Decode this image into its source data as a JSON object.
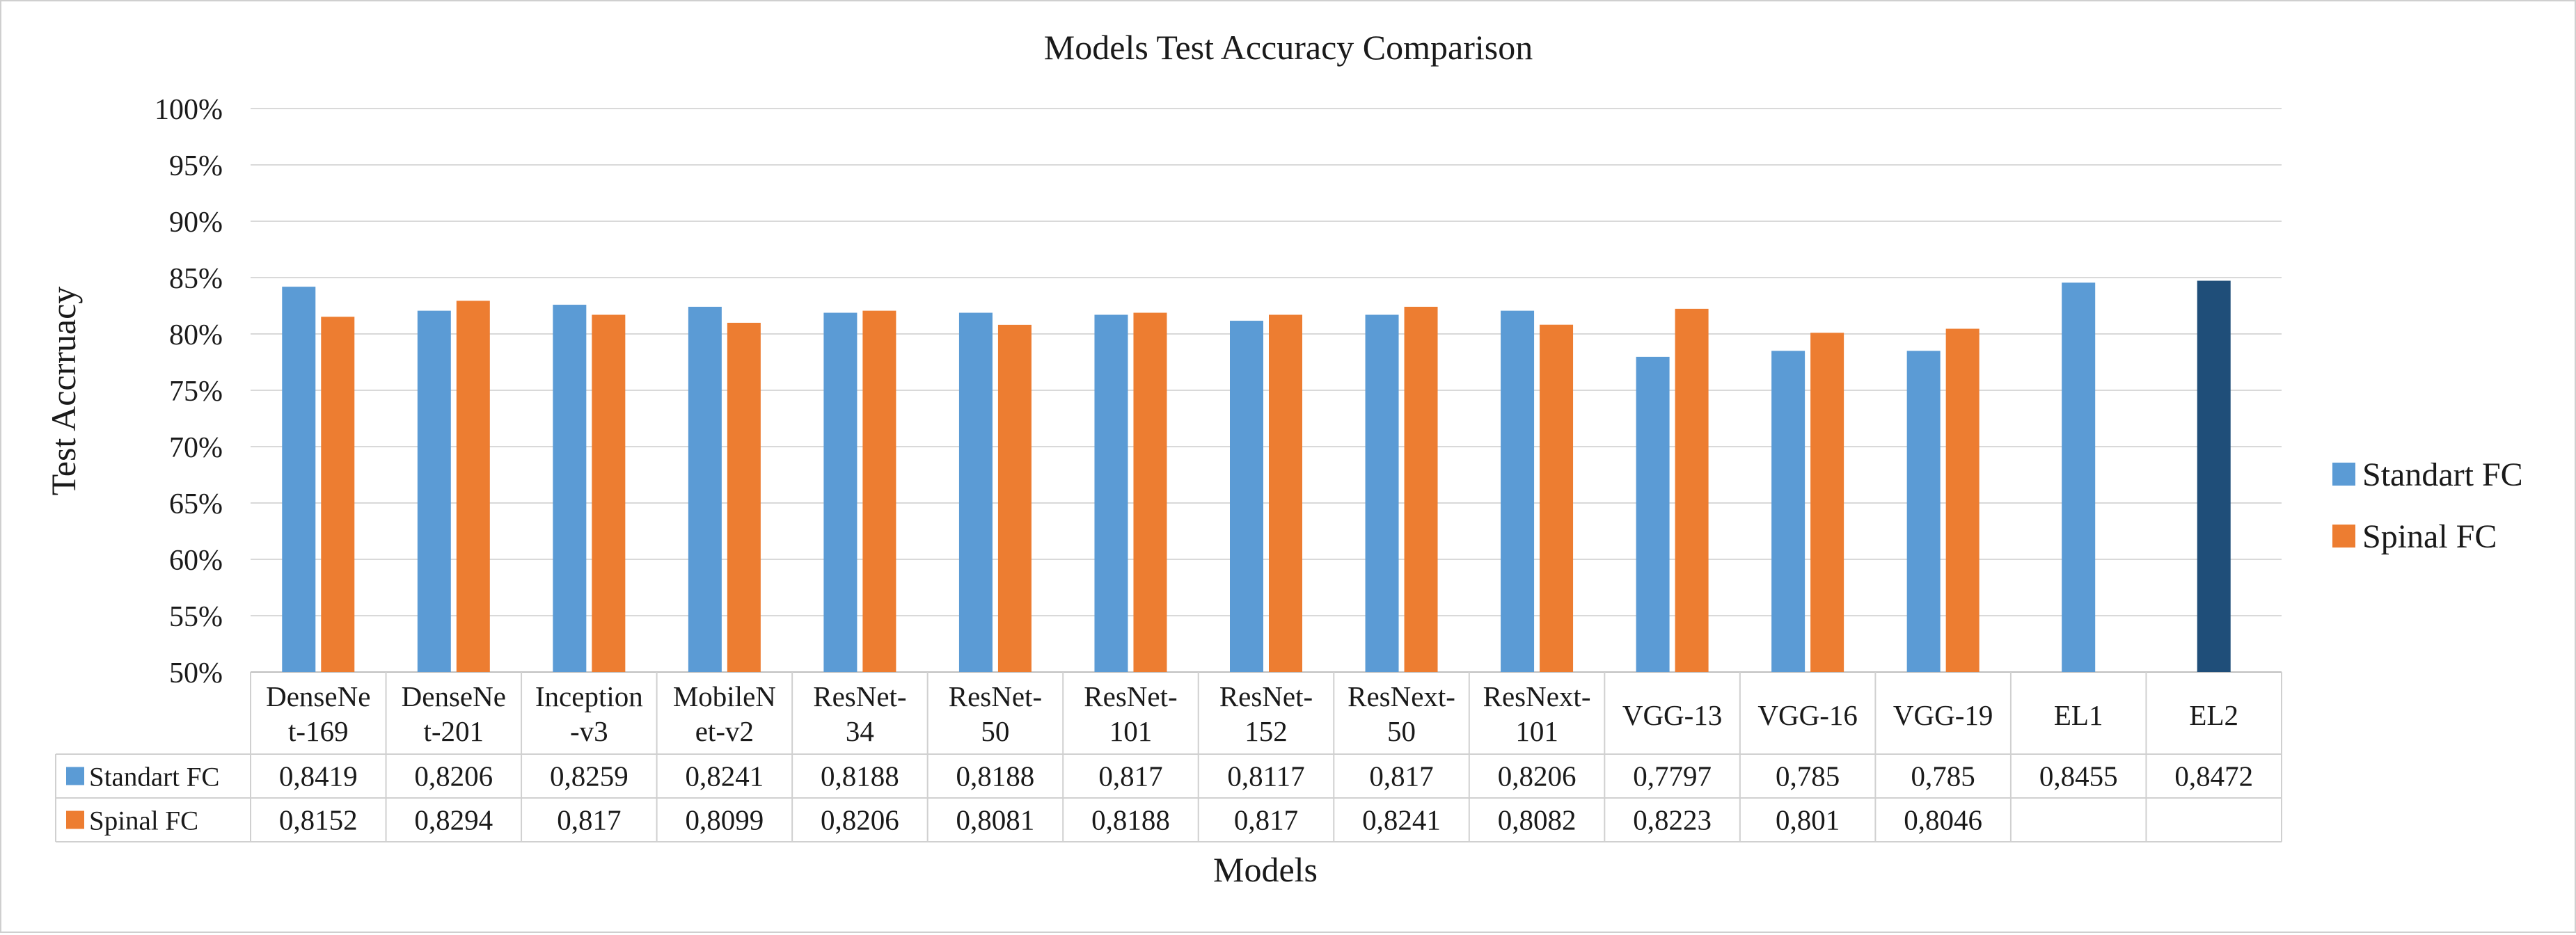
{
  "chart_data": {
    "type": "bar",
    "title": "Models Test Accuracy Comparison",
    "xlabel": "Models",
    "ylabel": "Test Accrruacy",
    "ylim": [
      0.5,
      1.0
    ],
    "ytick_values": [
      0.5,
      0.55,
      0.6,
      0.65,
      0.7,
      0.75,
      0.8,
      0.85,
      0.9,
      0.95,
      1.0
    ],
    "ytick_labels": [
      "50%",
      "55%",
      "60%",
      "65%",
      "70%",
      "75%",
      "80%",
      "85%",
      "90%",
      "95%",
      "100%"
    ],
    "grid": true,
    "legend_position": "right",
    "categories": [
      "DenseNet-169",
      "DenseNet-201",
      "Inception-v3",
      "MobileNet-v2",
      "ResNet-34",
      "ResNet-50",
      "ResNet-101",
      "ResNet-152",
      "ResNext-50",
      "ResNext-101",
      "VGG-13",
      "VGG-16",
      "VGG-19",
      "EL1",
      "EL2"
    ],
    "category_label_lines": [
      [
        "DenseNe",
        "t-169"
      ],
      [
        "DenseNe",
        "t-201"
      ],
      [
        "Inception",
        "-v3"
      ],
      [
        "MobileN",
        "et-v2"
      ],
      [
        "ResNet-",
        "34"
      ],
      [
        "ResNet-",
        "50"
      ],
      [
        "ResNet-",
        "101"
      ],
      [
        "ResNet-",
        "152"
      ],
      [
        "ResNext-",
        "50"
      ],
      [
        "ResNext-",
        "101"
      ],
      [
        "VGG-13"
      ],
      [
        "VGG-16"
      ],
      [
        "VGG-19"
      ],
      [
        "EL1"
      ],
      [
        "EL2"
      ]
    ],
    "series": [
      {
        "name": "Standart FC",
        "color": "#5b9bd5",
        "values": [
          0.8419,
          0.8206,
          0.8259,
          0.8241,
          0.8188,
          0.8188,
          0.817,
          0.8117,
          0.817,
          0.8206,
          0.7797,
          0.785,
          0.785,
          0.8455,
          0.8472
        ],
        "table_values": [
          "0,8419",
          "0,8206",
          "0,8259",
          "0,8241",
          "0,8188",
          "0,8188",
          "0,817",
          "0,8117",
          "0,817",
          "0,8206",
          "0,7797",
          "0,785",
          "0,785",
          "0,8455",
          "0,8472"
        ]
      },
      {
        "name": "Spinal FC",
        "color": "#ed7d31",
        "values": [
          0.8152,
          0.8294,
          0.817,
          0.8099,
          0.8206,
          0.8081,
          0.8188,
          0.817,
          0.8241,
          0.8082,
          0.8223,
          0.801,
          0.8046,
          null,
          null
        ],
        "table_values": [
          "0,8152",
          "0,8294",
          "0,817",
          "0,8099",
          "0,8206",
          "0,8081",
          "0,8188",
          "0,817",
          "0,8241",
          "0,8082",
          "0,8223",
          "0,801",
          "0,8046",
          "",
          ""
        ]
      }
    ],
    "highlight": {
      "category": "EL2",
      "series": "Standart FC",
      "color": "#1f4e79"
    }
  }
}
